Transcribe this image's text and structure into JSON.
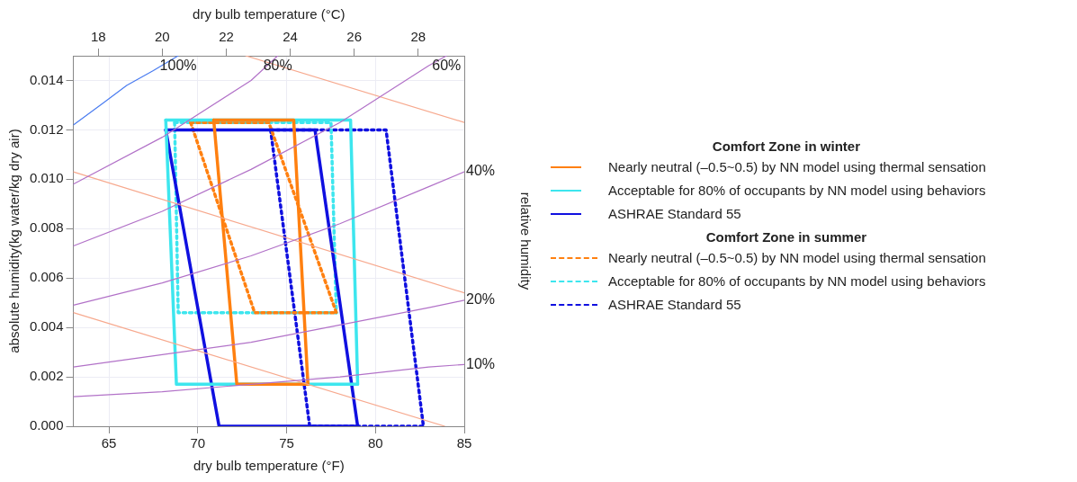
{
  "chart_data": {
    "type": "line",
    "xlabel": "dry bulb temperature (°F)",
    "x2label": "dry bulb temperature (°C)",
    "ylabel": "absolute humidity(kg water/kg dry air)",
    "y2label": "relative humidity",
    "xlim": [
      63,
      85
    ],
    "xticks": [
      65,
      70,
      75,
      80,
      85
    ],
    "x2lim": [
      17.22,
      29.44
    ],
    "x2ticks": [
      18,
      20,
      22,
      24,
      26,
      28
    ],
    "ylim": [
      0,
      0.015
    ],
    "yticks": [
      {
        "value": 0,
        "label": "0.000"
      },
      {
        "value": 0.002,
        "label": "0.002"
      },
      {
        "value": 0.004,
        "label": "0.004"
      },
      {
        "value": 0.006,
        "label": "0.006"
      },
      {
        "value": 0.008,
        "label": "0.008"
      },
      {
        "value": 0.01,
        "label": "0.010"
      },
      {
        "value": 0.012,
        "label": "0.012"
      },
      {
        "value": 0.014,
        "label": "0.014"
      }
    ],
    "grid": true,
    "legend": "right",
    "marker": "none",
    "series": [
      {
        "color": "#4a7cf0",
        "x": [
          63,
          64.7,
          66,
          67.5,
          68.9
        ],
        "values": [
          0.0122,
          0.0131,
          0.0138,
          0.0144,
          0.015
        ]
      },
      {
        "color": "#b272c8",
        "x": [
          63,
          68,
          73,
          74.5
        ],
        "values": [
          0.0098,
          0.0117,
          0.014,
          0.015
        ]
      },
      {
        "color": "#b272c8",
        "x": [
          63,
          68,
          73,
          78,
          83,
          84
        ],
        "values": [
          0.0073,
          0.0087,
          0.0104,
          0.0123,
          0.0146,
          0.015
        ]
      },
      {
        "color": "#b272c8",
        "x": [
          63,
          68,
          73,
          78,
          83,
          85
        ],
        "values": [
          0.0049,
          0.0058,
          0.0069,
          0.0082,
          0.0097,
          0.0103
        ]
      },
      {
        "color": "#b272c8",
        "x": [
          63,
          68,
          73,
          78,
          83,
          85
        ],
        "values": [
          0.0024,
          0.0029,
          0.0034,
          0.0041,
          0.0048,
          0.0051
        ]
      },
      {
        "color": "#b272c8",
        "x": [
          63,
          68,
          73,
          78,
          83,
          85
        ],
        "values": [
          0.0012,
          0.0014,
          0.0017,
          0.002,
          0.0024,
          0.0025
        ]
      },
      {
        "color": "#f7a98e",
        "x": [
          63,
          83.9
        ],
        "values": [
          0.0046,
          0
        ]
      },
      {
        "color": "#f7a98e",
        "x": [
          63,
          85
        ],
        "values": [
          0.0103,
          0.0054
        ]
      },
      {
        "color": "#f7a98e",
        "x": [
          72.7,
          85
        ],
        "values": [
          0.015,
          0.0123
        ]
      },
      {
        "name": "Nearly neutral (‒0.5~0.5) by NN model using thermal sensation",
        "color": "#ff8010",
        "line_style": "solid",
        "x": [
          70.9,
          75.4,
          76.2
        ],
        "values": [
          0.0124,
          0.0124,
          0.0017
        ]
      },
      {
        "color": "#ff8010",
        "line_style": "solid",
        "x": [
          70.9,
          72.2,
          76.2
        ],
        "values": [
          0.0124,
          0.0017,
          0.0017
        ]
      },
      {
        "name": "Acceptable for 80% of occupants by NN model using behaviors",
        "color": "#3de6ee",
        "line_style": "solid",
        "x": [
          68.2,
          78.6,
          79.0
        ],
        "values": [
          0.0124,
          0.0124,
          0.0017
        ]
      },
      {
        "color": "#3de6ee",
        "line_style": "solid",
        "x": [
          68.2,
          68.8,
          79.0
        ],
        "values": [
          0.0124,
          0.0017,
          0.0017
        ]
      },
      {
        "name": "ASHRAE Standard 55",
        "color": "#1010e0",
        "line_style": "solid",
        "x": [
          68.2,
          76.6,
          79.0
        ],
        "values": [
          0.012,
          0.012,
          0
        ]
      },
      {
        "color": "#1010e0",
        "line_style": "solid",
        "x": [
          68.2,
          71.2,
          79.0
        ],
        "values": [
          0.012,
          0,
          0
        ]
      },
      {
        "name": "Nearly neutral (‒0.5~0.5) by NN model using thermal sensation",
        "color": "#ff8010",
        "line_style": "dotted",
        "x": [
          69.6,
          74.0,
          77.8
        ],
        "values": [
          0.0123,
          0.0123,
          0.0046
        ]
      },
      {
        "color": "#ff8010",
        "line_style": "dotted",
        "x": [
          69.6,
          73.2,
          77.8
        ],
        "values": [
          0.0123,
          0.0046,
          0.0046
        ]
      },
      {
        "name": "Acceptable for 80% of occupants by NN model using behaviors",
        "color": "#3de6ee",
        "line_style": "dotted",
        "x": [
          68.7,
          77.5,
          77.8
        ],
        "values": [
          0.0123,
          0.0123,
          0.0046
        ]
      },
      {
        "color": "#3de6ee",
        "line_style": "dotted",
        "x": [
          68.7,
          68.9,
          77.8
        ],
        "values": [
          0.0123,
          0.0046,
          0.0046
        ]
      },
      {
        "name": "ASHRAE Standard 55",
        "color": "#1010e0",
        "line_style": "dotted",
        "x": [
          74.1,
          80.6,
          82.7
        ],
        "values": [
          0.012,
          0.012,
          0
        ]
      },
      {
        "color": "#1010e0",
        "line_style": "dotted",
        "x": [
          74.1,
          76.3,
          82.7
        ],
        "values": [
          0.012,
          0,
          0
        ]
      }
    ],
    "annotations": [
      "Comfort Zone in winter",
      "Comfort Zone in summer",
      {
        "text": "100%",
        "x": 68.9,
        "y": 0.015
      },
      {
        "text": "80%",
        "x": 74.5,
        "y": 0.015
      },
      {
        "text": "60%",
        "x": 84,
        "y": 0.015
      },
      {
        "text": "40%",
        "x": 85,
        "y": 0.0103
      },
      {
        "text": "20%",
        "x": 85,
        "y": 0.0051
      },
      {
        "text": "10%",
        "x": 85,
        "y": 0.0025
      }
    ]
  }
}
